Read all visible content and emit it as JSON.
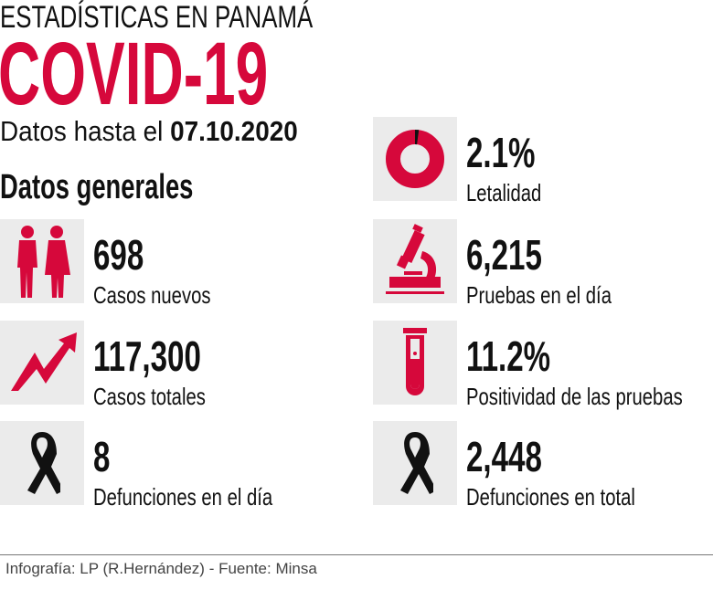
{
  "header": {
    "supertitle": "ESTADÍSTICAS EN PANAMÁ",
    "title": "COVID-19",
    "date_prefix": "Datos hasta el",
    "date": "07.10.2020"
  },
  "section_title": "Datos generales",
  "colors": {
    "accent": "#d6083b",
    "box": "#ebebeb",
    "text": "#111111"
  },
  "left_stats": [
    {
      "value": "698",
      "label": "Casos nuevos",
      "icon": "people-icon"
    },
    {
      "value": "117,300",
      "label": "Casos totales",
      "icon": "trend-up-arrow-icon"
    },
    {
      "value": "8",
      "label": "Defunciones en el día",
      "icon": "mourning-ribbon-icon"
    }
  ],
  "right_stats": [
    {
      "value": "2.1%",
      "label": "Letalidad",
      "icon": "donut-icon",
      "fraction": 0.021
    },
    {
      "value": "6,215",
      "label": "Pruebas en el día",
      "icon": "microscope-icon"
    },
    {
      "value": "11.2%",
      "label": "Positividad de las pruebas",
      "icon": "test-tube-icon"
    },
    {
      "value": "2,448",
      "label": "Defunciones en total",
      "icon": "mourning-ribbon-icon"
    }
  ],
  "footer": {
    "credit": "Infografía: LP (R.Hernández) - Fuente: Minsa"
  }
}
